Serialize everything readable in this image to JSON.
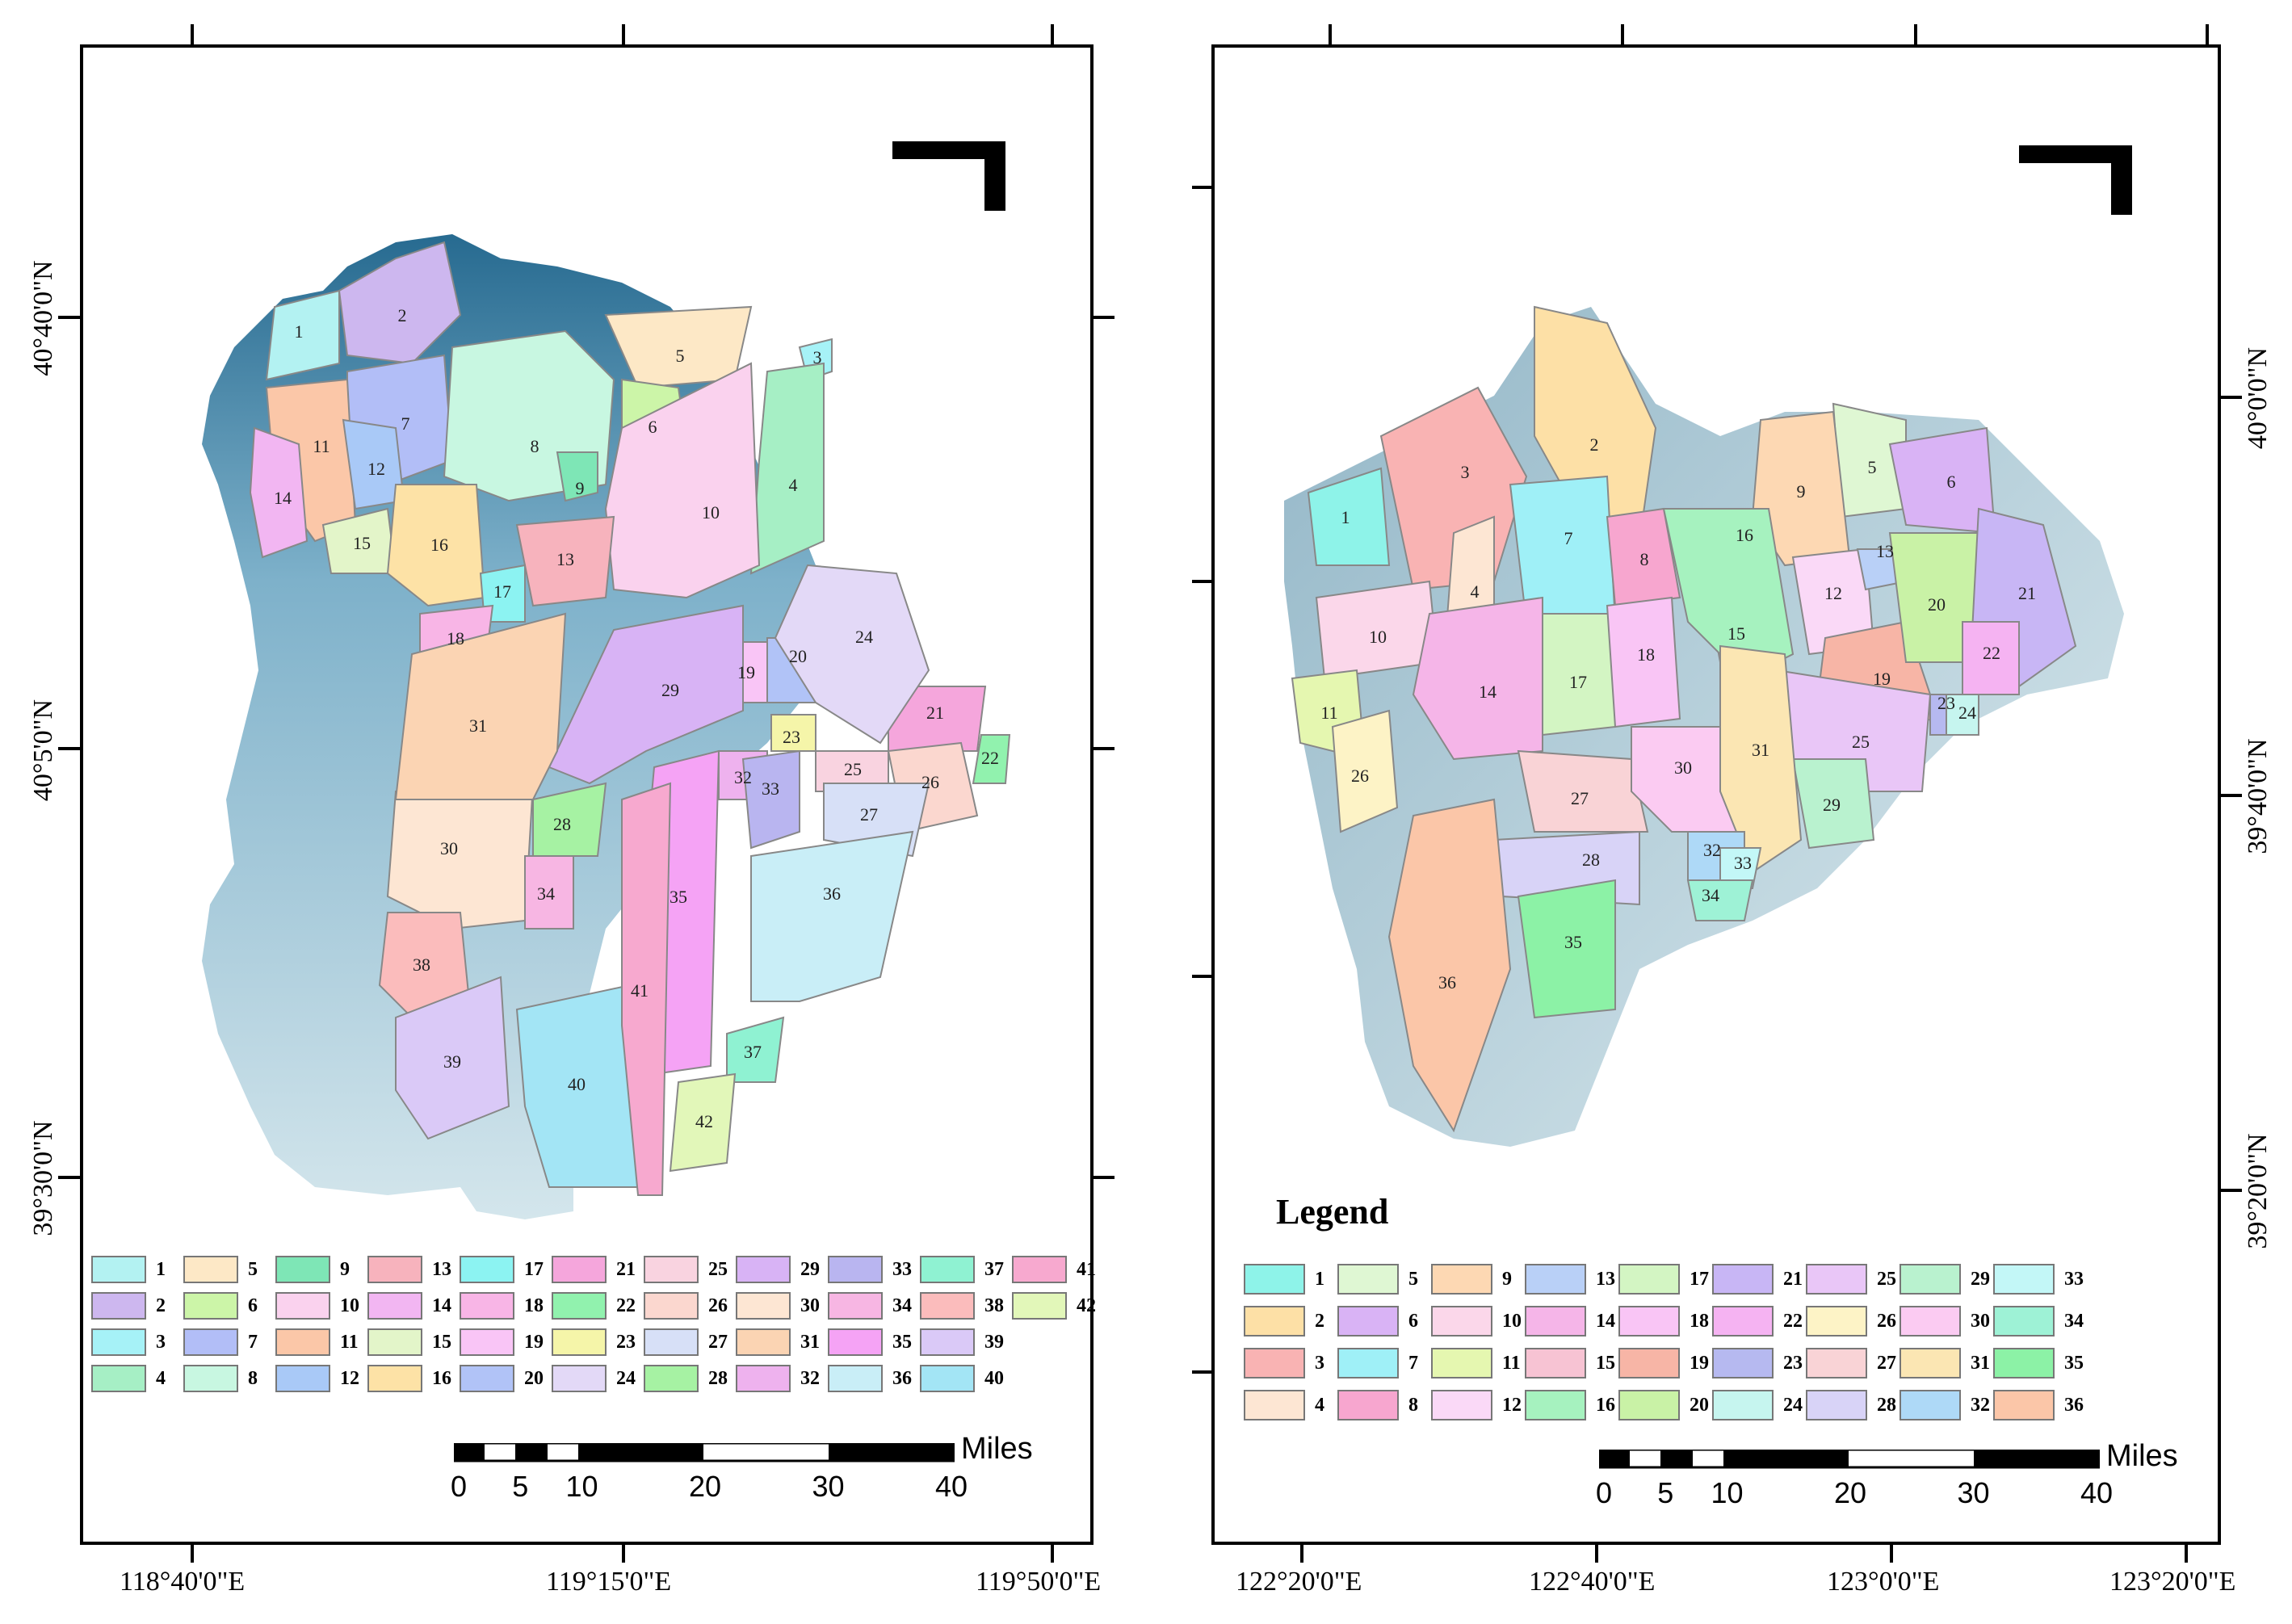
{
  "left_map": {
    "lon_labels": [
      "118°40'0\"E",
      "119°15'0\"E",
      "119°50'0\"E"
    ],
    "lat_labels": [
      "40°40'0\"N",
      "40°5'0\"N",
      "39°30'0\"N"
    ],
    "regions": [
      "1",
      "2",
      "3",
      "4",
      "5",
      "6",
      "7",
      "8",
      "9",
      "10",
      "11",
      "12",
      "13",
      "14",
      "15",
      "16",
      "17",
      "18",
      "19",
      "20",
      "21",
      "22",
      "23",
      "24",
      "25",
      "26",
      "27",
      "28",
      "29",
      "30",
      "31",
      "32",
      "33",
      "34",
      "35",
      "36",
      "37",
      "38",
      "39",
      "40",
      "41",
      "42"
    ],
    "legend_colors": [
      "#b3f2f2",
      "#cdb7ef",
      "#a6f2f7",
      "#a6efc5",
      "#fde8c6",
      "#ccf5a8",
      "#b2bef7",
      "#c8f7e1",
      "#7ee6b6",
      "#fad2ee",
      "#fbc7a8",
      "#a9c9f7",
      "#f7b3bd",
      "#f2b6f2",
      "#e3f5c9",
      "#fde2a6",
      "#8cf3f2",
      "#f8b5e6",
      "#f9c5f6",
      "#b1c3f7",
      "#f5a6dc",
      "#91f2ae",
      "#f5f5a9",
      "#e3d9f7",
      "#f9d3e0",
      "#fbd7cf",
      "#d7e0f7",
      "#a6f2a3",
      "#d8b3f5",
      "#fde6d3",
      "#fbd4b3",
      "#eeb2ee",
      "#b9b5f0",
      "#f7b6e3",
      "#f5a3f5",
      "#c9eef7",
      "#8ff2d2",
      "#fbbcbc",
      "#dac9f7",
      "#a3e5f5",
      "#f7a9cf",
      "#e2f7b9"
    ],
    "legend_labels": [
      "1",
      "2",
      "3",
      "4",
      "5",
      "6",
      "7",
      "8",
      "9",
      "10",
      "11",
      "12",
      "13",
      "14",
      "15",
      "16",
      "17",
      "18",
      "19",
      "20",
      "21",
      "22",
      "23",
      "24",
      "25",
      "26",
      "27",
      "28",
      "29",
      "30",
      "31",
      "32",
      "33",
      "34",
      "35",
      "36",
      "37",
      "38",
      "39",
      "40",
      "41",
      "42"
    ],
    "scale": {
      "ticks": [
        "0",
        "5",
        "10",
        "20",
        "30",
        "40"
      ],
      "unit": "Miles"
    }
  },
  "right_map": {
    "lon_labels": [
      "122°20'0\"E",
      "122°40'0\"E",
      "123°0'0\"E",
      "123°20'0\"E"
    ],
    "lat_labels": [
      "40°0'0\"N",
      "39°40'0\"N",
      "39°20'0\"N"
    ],
    "legend_title": "Legend",
    "regions": [
      "1",
      "2",
      "3",
      "4",
      "5",
      "6",
      "7",
      "8",
      "9",
      "10",
      "11",
      "12",
      "13",
      "14",
      "15",
      "16",
      "17",
      "18",
      "19",
      "20",
      "21",
      "22",
      "23",
      "24",
      "25",
      "26",
      "27",
      "28",
      "29",
      "30",
      "31",
      "32",
      "33",
      "34",
      "35",
      "36"
    ],
    "legend_colors": [
      "#8ef3e9",
      "#fde0a6",
      "#f9b3b3",
      "#fde6d3",
      "#dff7d3",
      "#d9b3f5",
      "#9ff0f7",
      "#f7a6cf",
      "#fdd8b3",
      "#fbd7ea",
      "#e5f7b0",
      "#fad9f7",
      "#b9d0f7",
      "#f5b5e8",
      "#f7c3d3",
      "#a6f2bf",
      "#d3f5c3",
      "#f9c5f5",
      "#f7b5a6",
      "#c9f2a6",
      "#c8b6f5",
      "#f5b3f2",
      "#b6b9f0",
      "#c6f5ef",
      "#e9c6f7",
      "#fdf3c6",
      "#f9d3d6",
      "#d8d3f7",
      "#b9f2cf",
      "#fbcbf2",
      "#fbe6b3",
      "#aed9f7",
      "#c3f7f7",
      "#9ef2d6",
      "#8cf2a6",
      "#fbc6a8"
    ],
    "legend_labels": [
      "1",
      "2",
      "3",
      "4",
      "5",
      "6",
      "7",
      "8",
      "9",
      "10",
      "11",
      "12",
      "13",
      "14",
      "15",
      "16",
      "17",
      "18",
      "19",
      "20",
      "21",
      "22",
      "23",
      "24",
      "25",
      "26",
      "27",
      "28",
      "29",
      "30",
      "31",
      "32",
      "33",
      "34",
      "35",
      "36"
    ],
    "scale": {
      "ticks": [
        "0",
        "5",
        "10",
        "20",
        "30",
        "40"
      ],
      "unit": "Miles"
    }
  }
}
